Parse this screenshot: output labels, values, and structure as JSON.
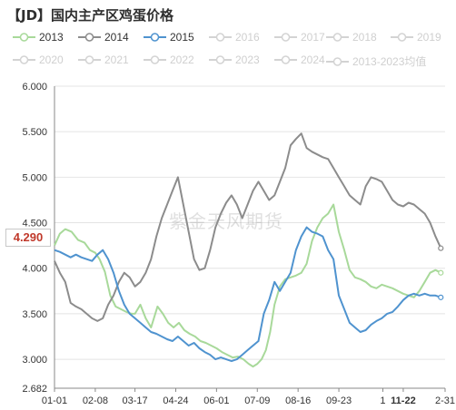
{
  "title": "【JD】国内主产区鸡蛋价格",
  "watermark": "紫金天风期货",
  "current_price": "4.290",
  "highlight_date": "11-22",
  "colors": {
    "2013": "#a8d99a",
    "2014": "#8c8c8c",
    "2015": "#4f93cf",
    "inactive": "#d3d3d3",
    "badge_text": "#c0392b"
  },
  "legend": [
    {
      "label": "2013",
      "active": true,
      "icon": "circle-line-icon"
    },
    {
      "label": "2014",
      "active": true,
      "icon": "circle-line-icon"
    },
    {
      "label": "2015",
      "active": true,
      "icon": "circle-line-icon"
    },
    {
      "label": "2016",
      "active": false,
      "icon": "circle-line-icon"
    },
    {
      "label": "2017",
      "active": false,
      "icon": "circle-line-icon"
    },
    {
      "label": "2018",
      "active": false,
      "icon": "circle-line-icon"
    },
    {
      "label": "2019",
      "active": false,
      "icon": "circle-line-icon"
    },
    {
      "label": "2020",
      "active": false,
      "icon": "circle-line-icon"
    },
    {
      "label": "2021",
      "active": false,
      "icon": "circle-line-icon"
    },
    {
      "label": "2022",
      "active": false,
      "icon": "circle-line-icon"
    },
    {
      "label": "2023",
      "active": false,
      "icon": "circle-line-icon"
    },
    {
      "label": "2024",
      "active": false,
      "icon": "circle-line-icon"
    },
    {
      "label": "2013-2023均值",
      "active": false,
      "icon": "circle-line-icon"
    }
  ],
  "chart_data": {
    "type": "line",
    "title": "【JD】国内主产区鸡蛋价格",
    "xlabel": "",
    "ylabel": "",
    "ylim": [
      2.682,
      6.0
    ],
    "yticks": [
      "6.000",
      "5.500",
      "5.000",
      "4.500",
      "4.000",
      "3.500",
      "3.000",
      "2.682"
    ],
    "ytick_values": [
      6.0,
      5.5,
      5.0,
      4.5,
      4.0,
      3.5,
      3.0,
      2.682
    ],
    "xlim": [
      0,
      364
    ],
    "xticks": [
      "01-01",
      "02-08",
      "03-17",
      "04-24",
      "06-01",
      "07-09",
      "08-16",
      "09-23",
      "1",
      "11-22",
      "2-31"
    ],
    "xtick_days": [
      0,
      38,
      75,
      113,
      151,
      189,
      227,
      265,
      306,
      325,
      364
    ],
    "grid": "horizontal",
    "legend_position": "top",
    "series": [
      {
        "name": "2013",
        "x": [
          0,
          5,
          10,
          16,
          22,
          28,
          33,
          38,
          42,
          47,
          52,
          57,
          62,
          67,
          72,
          75,
          80,
          85,
          90,
          96,
          101,
          106,
          111,
          116,
          121,
          126,
          131,
          136,
          141,
          146,
          151,
          156,
          161,
          166,
          171,
          176,
          181,
          185,
          189,
          193,
          197,
          201,
          205,
          210,
          215,
          220,
          225,
          230,
          235,
          240,
          245,
          250,
          255,
          260,
          265,
          270,
          275,
          280,
          285,
          290,
          295,
          300,
          305,
          310,
          315,
          320,
          325,
          330,
          335,
          340,
          345,
          350,
          355,
          360
        ],
        "values": [
          4.25,
          4.38,
          4.43,
          4.4,
          4.31,
          4.28,
          4.2,
          4.17,
          4.1,
          3.96,
          3.7,
          3.58,
          3.55,
          3.52,
          3.5,
          3.5,
          3.6,
          3.45,
          3.35,
          3.58,
          3.5,
          3.4,
          3.35,
          3.4,
          3.32,
          3.28,
          3.25,
          3.2,
          3.18,
          3.15,
          3.12,
          3.08,
          3.05,
          3.02,
          3.03,
          3.0,
          2.95,
          2.92,
          2.95,
          3.0,
          3.1,
          3.3,
          3.6,
          3.8,
          3.88,
          3.9,
          3.92,
          3.95,
          4.05,
          4.3,
          4.45,
          4.55,
          4.6,
          4.7,
          4.4,
          4.2,
          3.98,
          3.9,
          3.88,
          3.85,
          3.8,
          3.78,
          3.82,
          3.8,
          3.78,
          3.75,
          3.72,
          3.7,
          3.68,
          3.75,
          3.85,
          3.95,
          3.98,
          3.95
        ]
      },
      {
        "name": "2014",
        "x": [
          0,
          5,
          10,
          15,
          20,
          25,
          30,
          35,
          40,
          45,
          50,
          55,
          60,
          65,
          70,
          75,
          80,
          85,
          90,
          95,
          100,
          105,
          110,
          115,
          120,
          125,
          130,
          135,
          140,
          145,
          150,
          155,
          160,
          165,
          170,
          175,
          180,
          185,
          190,
          195,
          200,
          205,
          210,
          215,
          220,
          225,
          230,
          235,
          240,
          245,
          250,
          255,
          260,
          265,
          270,
          275,
          280,
          285,
          290,
          295,
          300,
          305,
          310,
          315,
          320,
          325,
          330,
          335,
          340,
          345,
          350,
          355,
          360
        ],
        "values": [
          4.08,
          3.95,
          3.85,
          3.62,
          3.58,
          3.55,
          3.5,
          3.45,
          3.42,
          3.45,
          3.6,
          3.7,
          3.85,
          3.95,
          3.9,
          3.8,
          3.85,
          3.95,
          4.1,
          4.35,
          4.55,
          4.7,
          4.85,
          5.0,
          4.7,
          4.4,
          4.1,
          3.98,
          4.0,
          4.2,
          4.45,
          4.6,
          4.72,
          4.8,
          4.7,
          4.55,
          4.7,
          4.85,
          4.95,
          4.85,
          4.75,
          4.8,
          4.95,
          5.1,
          5.35,
          5.42,
          5.48,
          5.32,
          5.28,
          5.25,
          5.22,
          5.2,
          5.1,
          5.0,
          4.9,
          4.8,
          4.75,
          4.7,
          4.9,
          5.0,
          4.98,
          4.95,
          4.85,
          4.75,
          4.7,
          4.68,
          4.72,
          4.7,
          4.65,
          4.6,
          4.5,
          4.35,
          4.22
        ]
      },
      {
        "name": "2015",
        "x": [
          0,
          5,
          10,
          15,
          20,
          25,
          30,
          35,
          40,
          45,
          50,
          55,
          60,
          65,
          70,
          75,
          80,
          85,
          90,
          95,
          100,
          105,
          110,
          115,
          120,
          125,
          130,
          135,
          140,
          145,
          150,
          155,
          160,
          165,
          170,
          175,
          180,
          185,
          190,
          195,
          200,
          205,
          210,
          215,
          220,
          225,
          230,
          235,
          240,
          245,
          250,
          255,
          260,
          265,
          270,
          275,
          280,
          285,
          290,
          295,
          300,
          305,
          310,
          315,
          320,
          325,
          330,
          335,
          340,
          345,
          350,
          355,
          360
        ],
        "values": [
          4.2,
          4.18,
          4.15,
          4.12,
          4.15,
          4.12,
          4.1,
          4.08,
          4.15,
          4.2,
          4.1,
          3.95,
          3.75,
          3.6,
          3.5,
          3.45,
          3.4,
          3.35,
          3.3,
          3.28,
          3.25,
          3.22,
          3.2,
          3.25,
          3.2,
          3.15,
          3.18,
          3.12,
          3.08,
          3.05,
          3.0,
          3.02,
          3.0,
          2.98,
          3.0,
          3.05,
          3.1,
          3.15,
          3.2,
          3.5,
          3.65,
          3.85,
          3.75,
          3.85,
          3.95,
          4.2,
          4.35,
          4.45,
          4.4,
          4.38,
          4.35,
          4.2,
          4.1,
          3.7,
          3.55,
          3.4,
          3.35,
          3.3,
          3.32,
          3.38,
          3.42,
          3.45,
          3.5,
          3.52,
          3.58,
          3.65,
          3.7,
          3.72,
          3.7,
          3.72,
          3.7,
          3.7,
          3.68
        ]
      }
    ]
  }
}
